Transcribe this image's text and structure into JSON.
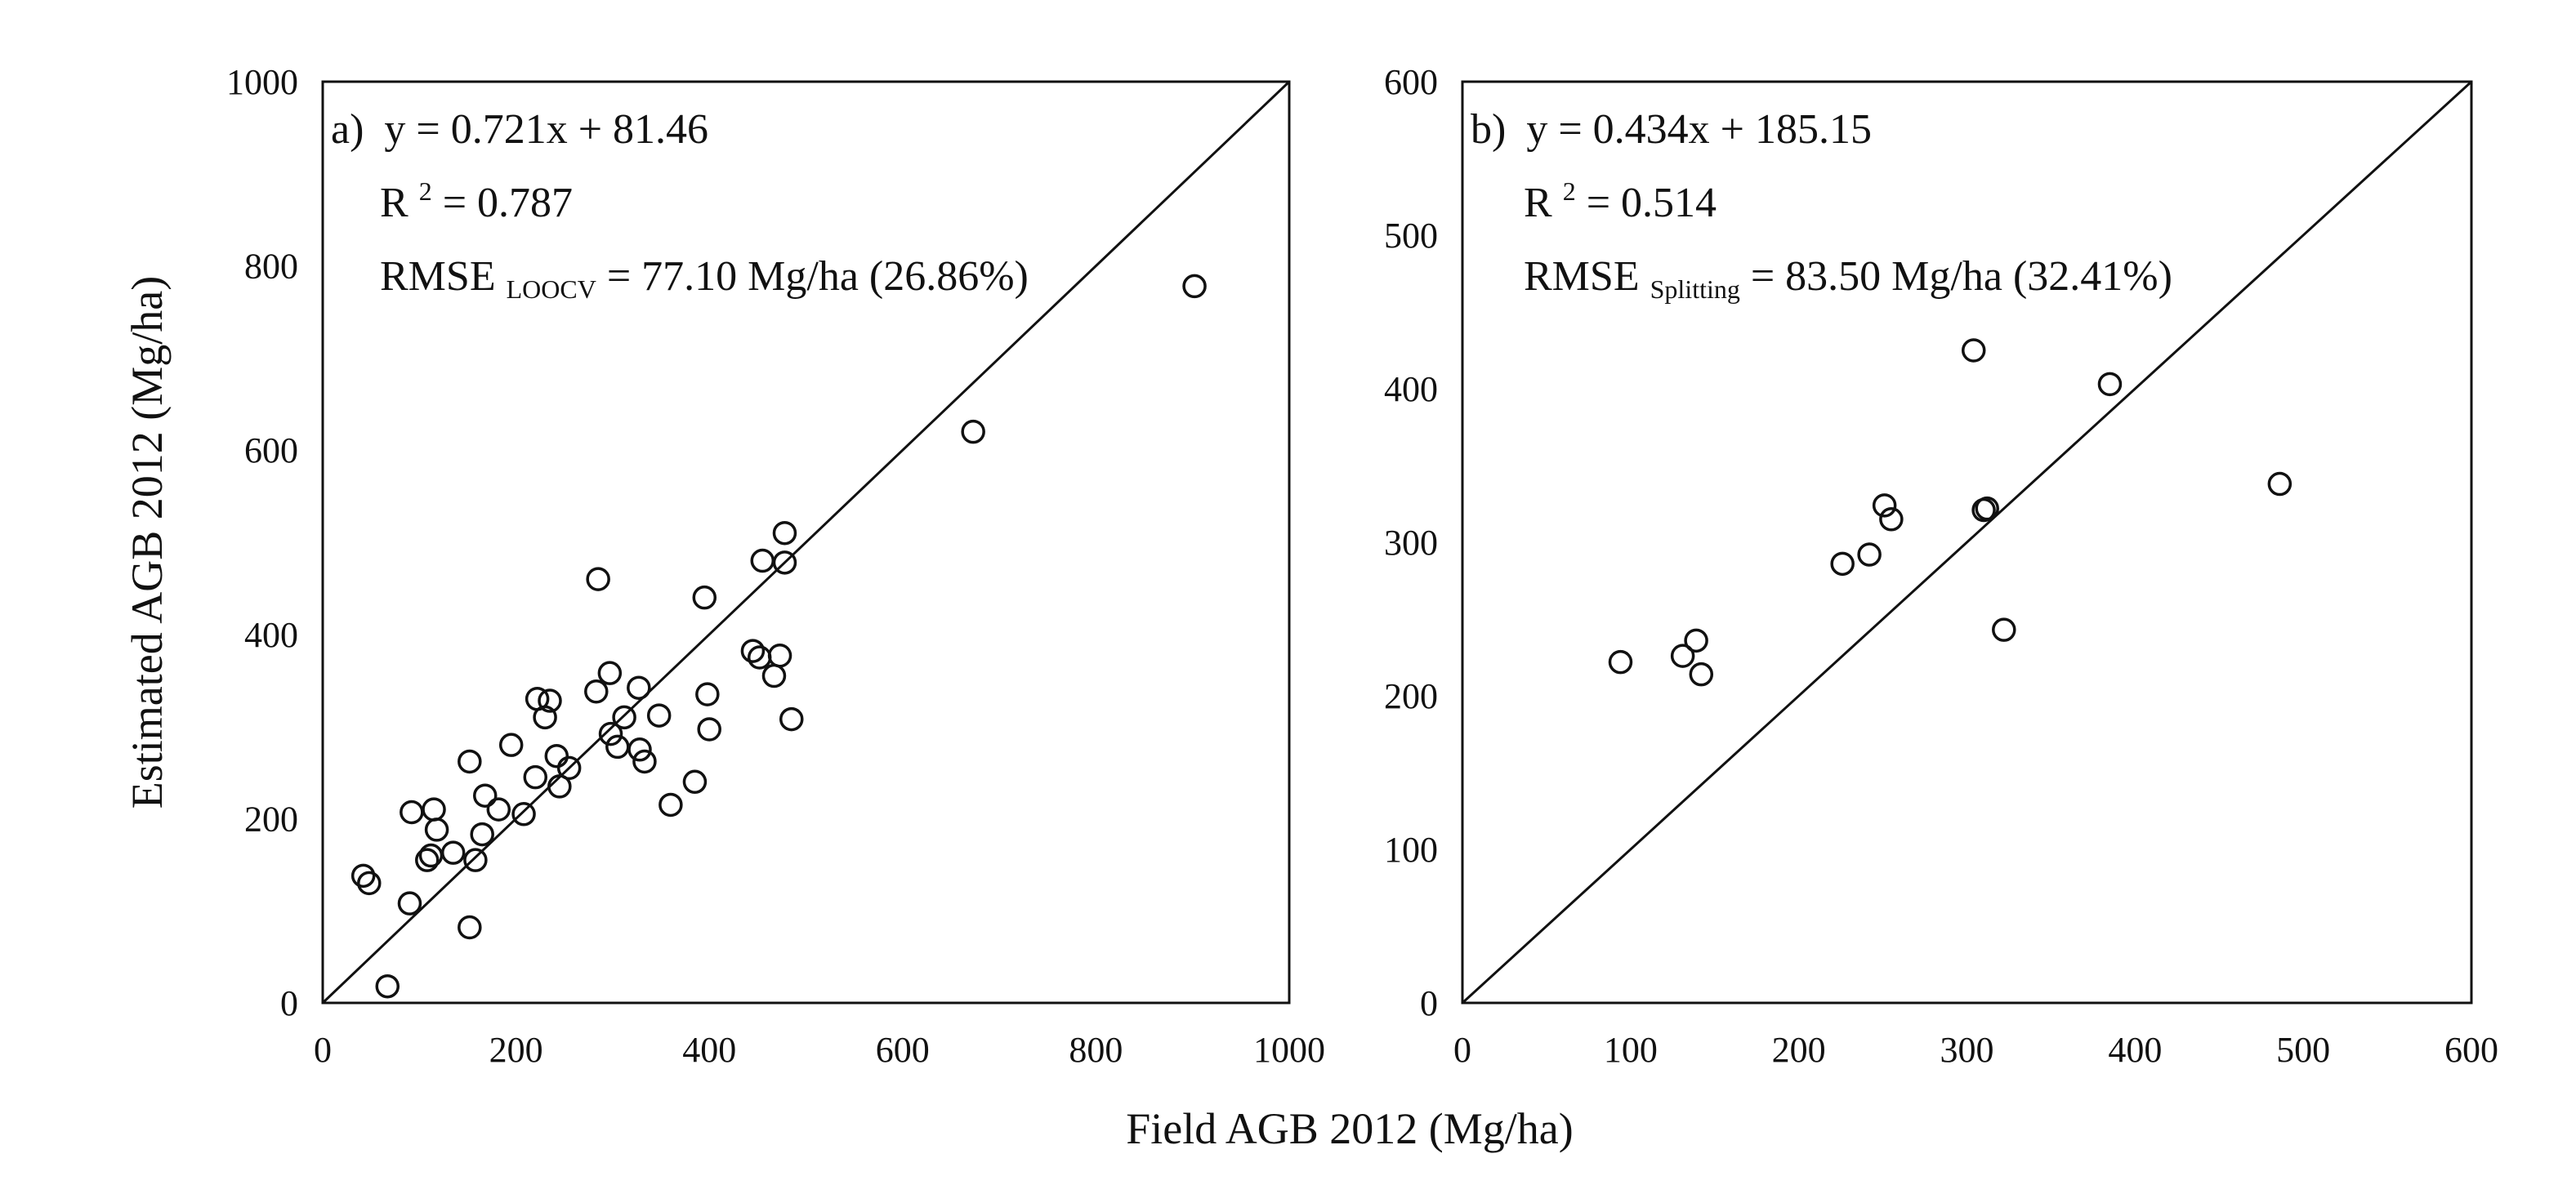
{
  "figure": {
    "shared_xlabel": "Field AGB 2012 (Mg/ha)",
    "shared_ylabel": "Estimated AGB 2012 (Mg/ha)"
  },
  "chart_data": [
    {
      "type": "scatter",
      "panel_label": "a)",
      "annotations": {
        "equation": "y = 0.721x + 81.46",
        "r2_prefix": "R",
        "r2_sup": "2",
        "r2_value": " = 0.787",
        "rmse_prefix": "RMSE",
        "rmse_sub": "LOOCV",
        "rmse_value": " = 77.10 Mg/ha (26.86%)"
      },
      "xlim": [
        0,
        1000
      ],
      "ylim": [
        0,
        1000
      ],
      "xticks": [
        "0",
        "200",
        "400",
        "600",
        "800",
        "1000"
      ],
      "yticks": [
        "0",
        "200",
        "400",
        "600",
        "800",
        "1000"
      ],
      "one_to_one_line": true,
      "grid": false,
      "points": [
        [
          42,
          138
        ],
        [
          48,
          130
        ],
        [
          67,
          18
        ],
        [
          90,
          108
        ],
        [
          92,
          207
        ],
        [
          108,
          155
        ],
        [
          112,
          160
        ],
        [
          115,
          210
        ],
        [
          118,
          188
        ],
        [
          135,
          163
        ],
        [
          152,
          82
        ],
        [
          152,
          262
        ],
        [
          158,
          155
        ],
        [
          165,
          183
        ],
        [
          168,
          225
        ],
        [
          182,
          210
        ],
        [
          195,
          280
        ],
        [
          208,
          205
        ],
        [
          220,
          245
        ],
        [
          222,
          330
        ],
        [
          230,
          310
        ],
        [
          235,
          328
        ],
        [
          242,
          268
        ],
        [
          245,
          235
        ],
        [
          255,
          255
        ],
        [
          283,
          338
        ],
        [
          285,
          460
        ],
        [
          297,
          358
        ],
        [
          298,
          292
        ],
        [
          305,
          278
        ],
        [
          312,
          310
        ],
        [
          327,
          342
        ],
        [
          328,
          275
        ],
        [
          333,
          262
        ],
        [
          348,
          312
        ],
        [
          360,
          215
        ],
        [
          385,
          240
        ],
        [
          395,
          440
        ],
        [
          398,
          335
        ],
        [
          400,
          297
        ],
        [
          445,
          382
        ],
        [
          452,
          375
        ],
        [
          455,
          480
        ],
        [
          467,
          355
        ],
        [
          473,
          377
        ],
        [
          478,
          510
        ],
        [
          478,
          478
        ],
        [
          485,
          308
        ],
        [
          673,
          620
        ],
        [
          902,
          778
        ]
      ]
    },
    {
      "type": "scatter",
      "panel_label": "b)",
      "annotations": {
        "equation": "y = 0.434x + 185.15",
        "r2_prefix": "R",
        "r2_sup": "2",
        "r2_value": " = 0.514",
        "rmse_prefix": "RMSE",
        "rmse_sub": "Splitting",
        "rmse_value": " = 83.50 Mg/ha (32.41%)"
      },
      "xlim": [
        0,
        600
      ],
      "ylim": [
        0,
        600
      ],
      "xticks": [
        "0",
        "100",
        "200",
        "300",
        "400",
        "500",
        "600"
      ],
      "yticks": [
        "0",
        "100",
        "200",
        "300",
        "400",
        "500",
        "600"
      ],
      "one_to_one_line": true,
      "grid": false,
      "points": [
        [
          94,
          222
        ],
        [
          131,
          226
        ],
        [
          139,
          236
        ],
        [
          142,
          214
        ],
        [
          226,
          286
        ],
        [
          242,
          292
        ],
        [
          251,
          324
        ],
        [
          255,
          315
        ],
        [
          304,
          425
        ],
        [
          310,
          321
        ],
        [
          312,
          322
        ],
        [
          322,
          243
        ],
        [
          385,
          403
        ],
        [
          486,
          338
        ]
      ]
    }
  ]
}
